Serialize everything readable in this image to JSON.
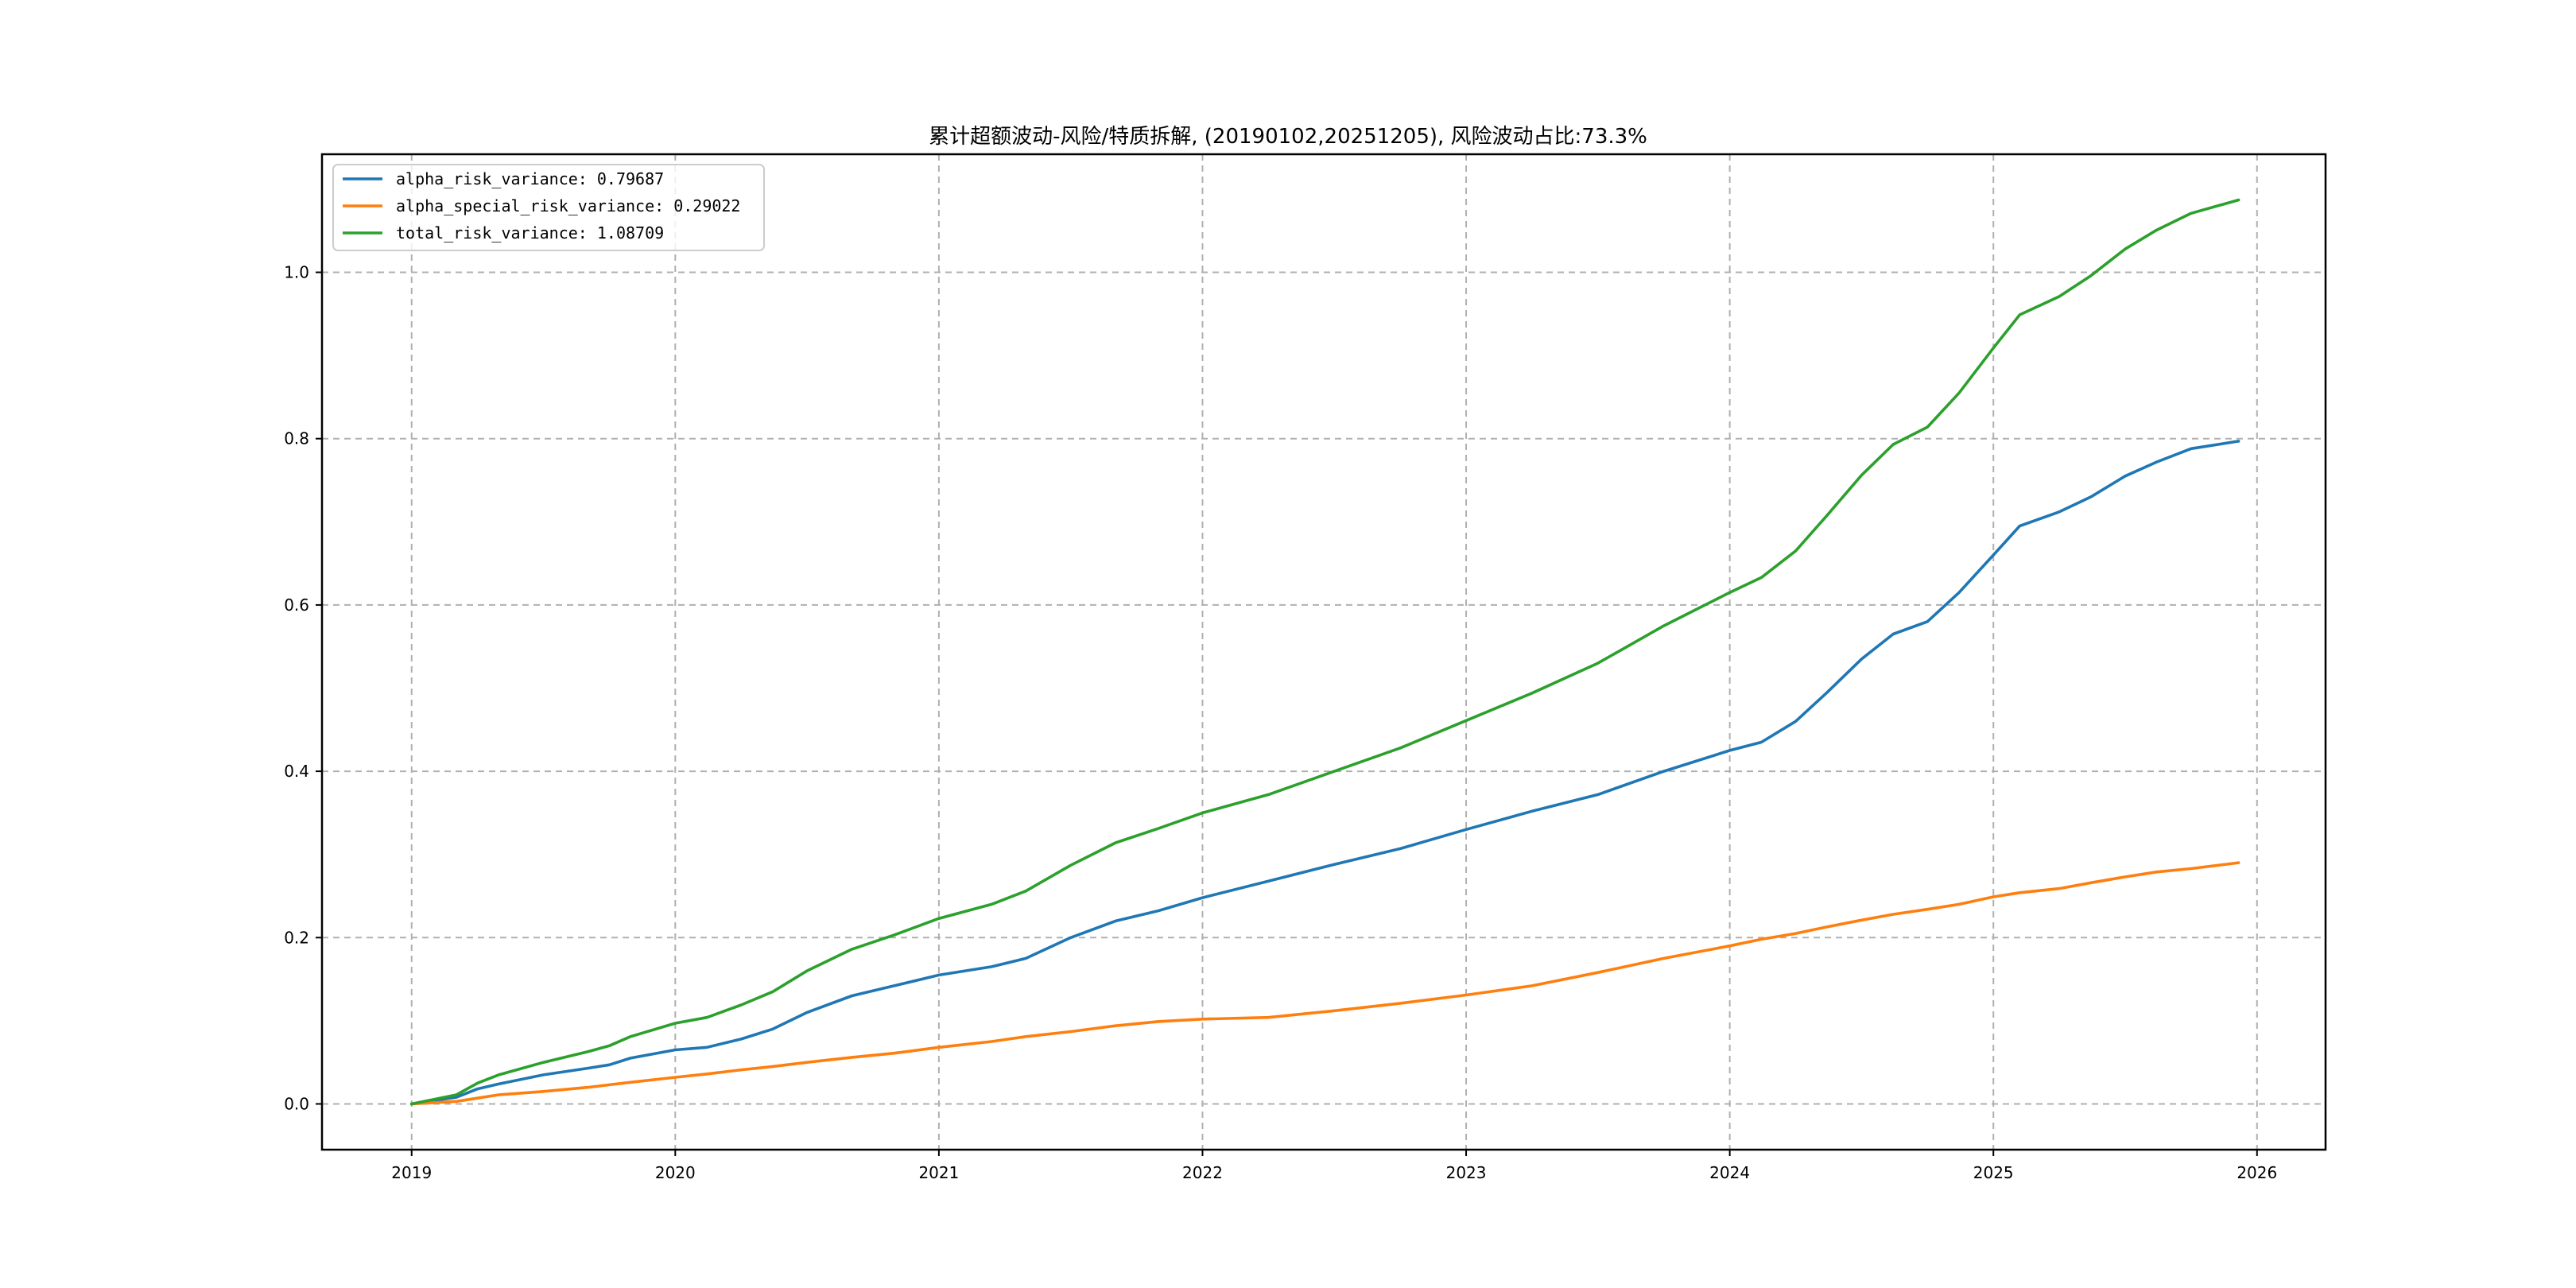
{
  "chart_data": {
    "type": "line",
    "title": "累计超额波动-风险/特质拆解, (20190102,20251205), 风险波动占比:73.3%",
    "xlabel": "",
    "ylabel": "",
    "xlim": [
      2018.66,
      2026.26
    ],
    "ylim": [
      -0.055,
      1.142
    ],
    "grid": true,
    "legend_position": "top-left",
    "x_ticks": [
      {
        "value": 2019,
        "label": "2019"
      },
      {
        "value": 2020,
        "label": "2020"
      },
      {
        "value": 2021,
        "label": "2021"
      },
      {
        "value": 2022,
        "label": "2022"
      },
      {
        "value": 2023,
        "label": "2023"
      },
      {
        "value": 2024,
        "label": "2024"
      },
      {
        "value": 2025,
        "label": "2025"
      },
      {
        "value": 2026,
        "label": "2026"
      }
    ],
    "y_ticks": [
      {
        "value": 0.0,
        "label": "0.0"
      },
      {
        "value": 0.2,
        "label": "0.2"
      },
      {
        "value": 0.4,
        "label": "0.4"
      },
      {
        "value": 0.6,
        "label": "0.6"
      },
      {
        "value": 0.8,
        "label": "0.8"
      },
      {
        "value": 1.0,
        "label": "1.0"
      }
    ],
    "x": [
      2019.0,
      2019.17,
      2019.25,
      2019.33,
      2019.5,
      2019.67,
      2019.75,
      2019.83,
      2020.0,
      2020.12,
      2020.25,
      2020.37,
      2020.5,
      2020.67,
      2020.83,
      2021.0,
      2021.2,
      2021.33,
      2021.5,
      2021.67,
      2021.83,
      2022.0,
      2022.25,
      2022.5,
      2022.75,
      2023.0,
      2023.25,
      2023.5,
      2023.75,
      2024.0,
      2024.12,
      2024.25,
      2024.37,
      2024.5,
      2024.62,
      2024.75,
      2024.87,
      2025.0,
      2025.1,
      2025.25,
      2025.37,
      2025.5,
      2025.62,
      2025.75,
      2025.93
    ],
    "series": [
      {
        "name": "alpha_risk_variance",
        "label": "alpha_risk_variance: 0.79687",
        "color": "#1f77b4",
        "values": [
          0.0,
          0.008,
          0.018,
          0.024,
          0.035,
          0.043,
          0.047,
          0.055,
          0.065,
          0.068,
          0.078,
          0.09,
          0.11,
          0.13,
          0.142,
          0.155,
          0.165,
          0.175,
          0.2,
          0.22,
          0.232,
          0.248,
          0.268,
          0.288,
          0.307,
          0.33,
          0.352,
          0.372,
          0.4,
          0.425,
          0.435,
          0.46,
          0.495,
          0.535,
          0.565,
          0.58,
          0.615,
          0.66,
          0.695,
          0.712,
          0.73,
          0.755,
          0.772,
          0.788,
          0.797
        ]
      },
      {
        "name": "alpha_special_risk_variance",
        "label": "alpha_special_risk_variance: 0.29022",
        "color": "#ff7f0e",
        "values": [
          0.0,
          0.003,
          0.007,
          0.011,
          0.015,
          0.02,
          0.023,
          0.026,
          0.032,
          0.036,
          0.041,
          0.045,
          0.05,
          0.056,
          0.061,
          0.068,
          0.075,
          0.081,
          0.087,
          0.094,
          0.099,
          0.102,
          0.104,
          0.112,
          0.121,
          0.131,
          0.142,
          0.158,
          0.175,
          0.19,
          0.198,
          0.205,
          0.213,
          0.221,
          0.228,
          0.234,
          0.24,
          0.249,
          0.254,
          0.259,
          0.266,
          0.273,
          0.279,
          0.283,
          0.29
        ]
      },
      {
        "name": "total_risk_variance",
        "label": "total_risk_variance: 1.08709",
        "color": "#2ca02c",
        "values": [
          0.0,
          0.011,
          0.025,
          0.035,
          0.05,
          0.063,
          0.07,
          0.081,
          0.097,
          0.104,
          0.119,
          0.135,
          0.16,
          0.186,
          0.203,
          0.223,
          0.24,
          0.256,
          0.287,
          0.314,
          0.331,
          0.35,
          0.372,
          0.4,
          0.428,
          0.461,
          0.494,
          0.53,
          0.575,
          0.615,
          0.633,
          0.665,
          0.708,
          0.756,
          0.793,
          0.814,
          0.855,
          0.909,
          0.949,
          0.971,
          0.996,
          1.028,
          1.051,
          1.071,
          1.087
        ]
      }
    ]
  }
}
